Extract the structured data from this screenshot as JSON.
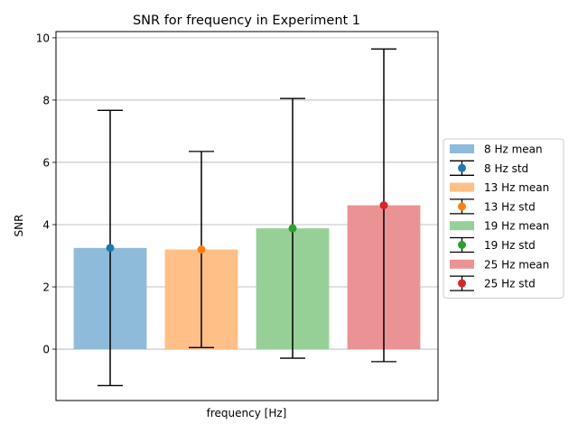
{
  "chart_data": {
    "type": "bar",
    "title": "SNR for frequency in Experiment 1",
    "xlabel": "frequency [Hz]",
    "ylabel": "SNR",
    "ylim": [
      -1.65,
      10.2
    ],
    "yticks": [
      0,
      2,
      4,
      6,
      8,
      10
    ],
    "grid": "horizontal",
    "legend_position": "right",
    "categories": [
      "8 Hz",
      "13 Hz",
      "19 Hz",
      "25 Hz"
    ],
    "series": [
      {
        "mean_label": "8 Hz mean",
        "std_label": "8 Hz std",
        "mean": 3.25,
        "std": 4.42,
        "color": "#1f77b4"
      },
      {
        "mean_label": "13 Hz mean",
        "std_label": "13 Hz std",
        "mean": 3.2,
        "std": 3.15,
        "color": "#ff7f0e"
      },
      {
        "mean_label": "19 Hz mean",
        "std_label": "19 Hz std",
        "mean": 3.88,
        "std": 4.17,
        "color": "#2ca02c"
      },
      {
        "mean_label": "25 Hz mean",
        "std_label": "25 Hz std",
        "mean": 4.62,
        "std": 5.02,
        "color": "#d62728"
      }
    ]
  }
}
